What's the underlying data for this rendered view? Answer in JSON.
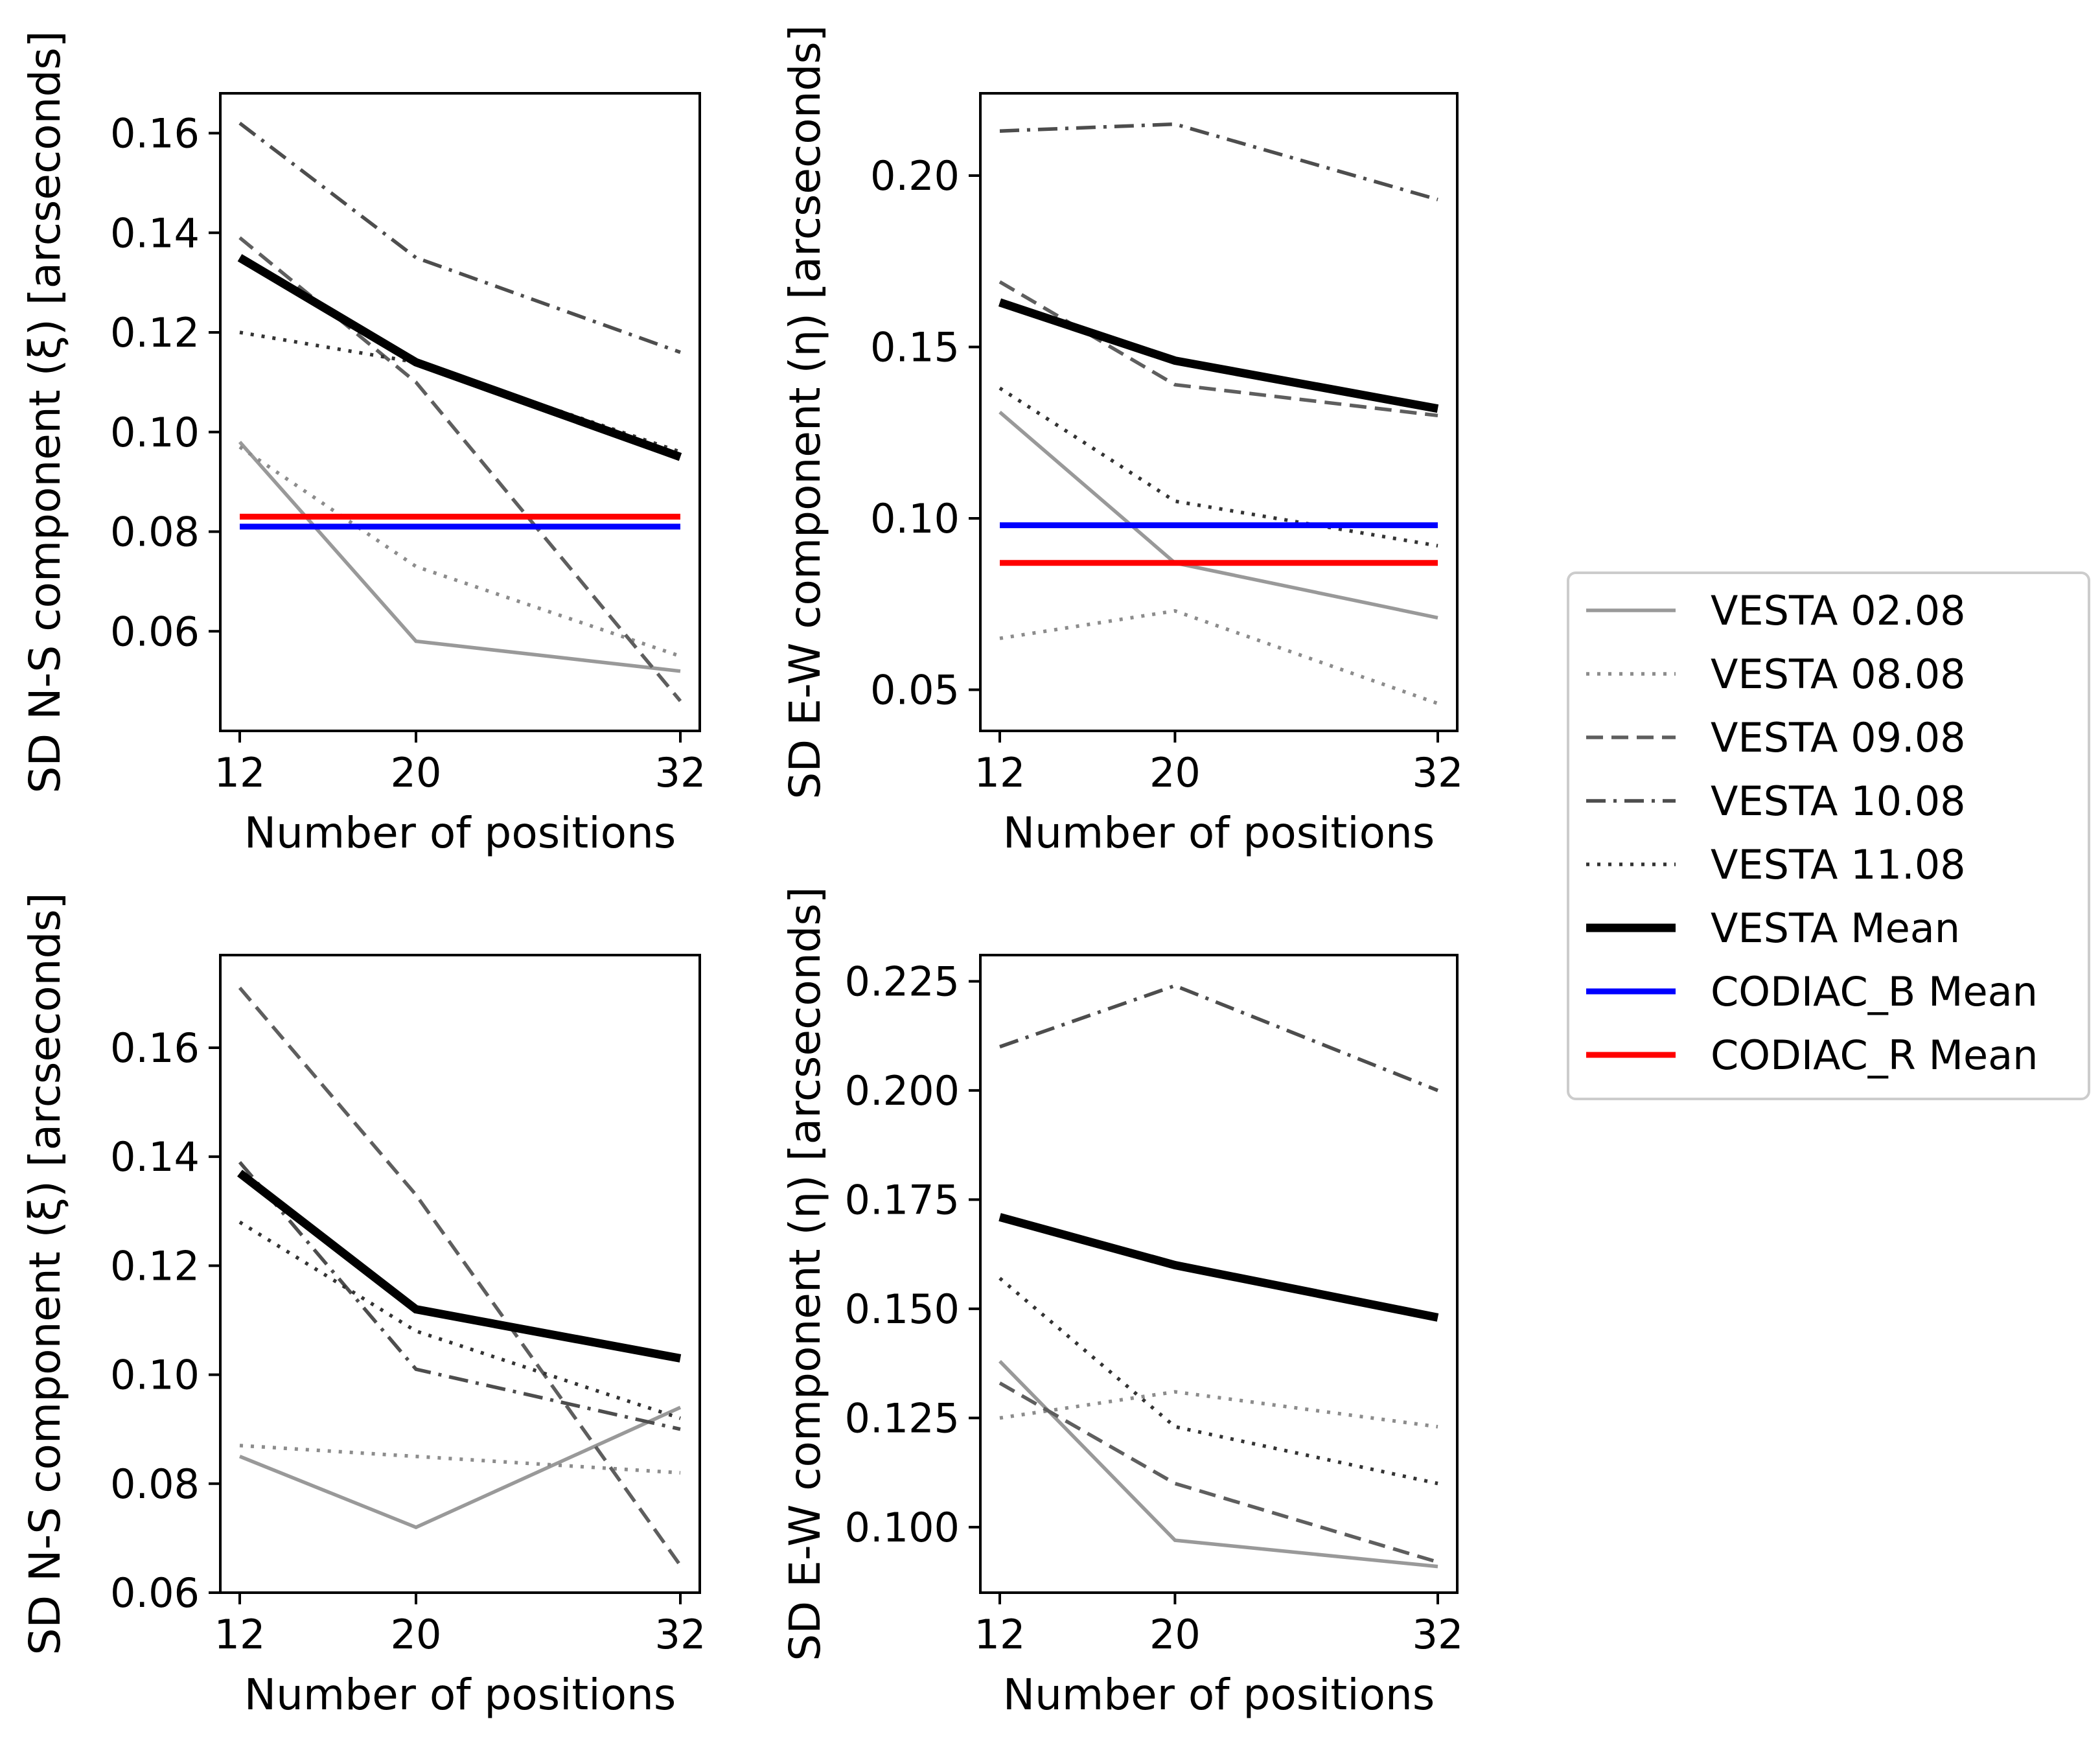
{
  "chart_data": [
    {
      "type": "line",
      "id": "top-left",
      "title": "",
      "xlabel": "Number of positions",
      "ylabel": "SD N-S component (ξ) [arcseconds]",
      "x": [
        12,
        20,
        32
      ],
      "xticks": [
        "12",
        "20",
        "32"
      ],
      "ylim": [
        0.04,
        0.168
      ],
      "yticks": [
        0.06,
        0.08,
        0.1,
        0.12,
        0.14,
        0.16
      ],
      "ytick_labels": [
        "0.06",
        "0.08",
        "0.10",
        "0.12",
        "0.14",
        "0.16"
      ],
      "grid": false,
      "series": [
        {
          "name": "VESTA 02.08",
          "style": "solid-gray",
          "values": [
            0.098,
            0.058,
            0.052
          ]
        },
        {
          "name": "VESTA 08.08",
          "style": "dotted-gray",
          "values": [
            0.097,
            0.073,
            0.055
          ]
        },
        {
          "name": "VESTA 09.08",
          "style": "dashed",
          "values": [
            0.139,
            0.11,
            0.046
          ]
        },
        {
          "name": "VESTA 10.08",
          "style": "dashdot",
          "values": [
            0.162,
            0.135,
            0.116
          ]
        },
        {
          "name": "VESTA 11.08",
          "style": "dotted-dark",
          "values": [
            0.12,
            0.114,
            0.096
          ]
        },
        {
          "name": "VESTA Mean",
          "style": "thick-black",
          "values": [
            0.135,
            0.114,
            0.095
          ]
        },
        {
          "name": "CODIAC_B Mean",
          "style": "blue",
          "values": [
            0.081,
            0.081,
            0.081
          ]
        },
        {
          "name": "CODIAC_R Mean",
          "style": "red",
          "values": [
            0.083,
            0.083,
            0.083
          ]
        }
      ]
    },
    {
      "type": "line",
      "id": "top-right",
      "title": "",
      "xlabel": "Number of positions",
      "ylabel": "SD E-W component (η) [arcseconds]",
      "x": [
        12,
        20,
        32
      ],
      "xticks": [
        "12",
        "20",
        "32"
      ],
      "ylim": [
        0.038,
        0.224
      ],
      "yticks": [
        0.05,
        0.1,
        0.15,
        0.2
      ],
      "ytick_labels": [
        "0.05",
        "0.10",
        "0.15",
        "0.20"
      ],
      "grid": false,
      "series": [
        {
          "name": "VESTA 02.08",
          "style": "solid-gray",
          "values": [
            0.131,
            0.087,
            0.071
          ]
        },
        {
          "name": "VESTA 08.08",
          "style": "dotted-gray",
          "values": [
            0.065,
            0.073,
            0.046
          ]
        },
        {
          "name": "VESTA 09.08",
          "style": "dashed",
          "values": [
            0.169,
            0.139,
            0.13
          ]
        },
        {
          "name": "VESTA 10.08",
          "style": "dashdot",
          "values": [
            0.213,
            0.215,
            0.193
          ]
        },
        {
          "name": "VESTA 11.08",
          "style": "dotted-dark",
          "values": [
            0.138,
            0.105,
            0.092
          ]
        },
        {
          "name": "VESTA Mean",
          "style": "thick-black",
          "values": [
            0.163,
            0.146,
            0.132
          ]
        },
        {
          "name": "CODIAC_B Mean",
          "style": "blue",
          "values": [
            0.098,
            0.098,
            0.098
          ]
        },
        {
          "name": "CODIAC_R Mean",
          "style": "red",
          "values": [
            0.087,
            0.087,
            0.087
          ]
        }
      ]
    },
    {
      "type": "line",
      "id": "bottom-left",
      "title": "",
      "xlabel": "Number of positions",
      "ylabel": "SD N-S component (ξ) [arcseconds]",
      "x": [
        12,
        20,
        32
      ],
      "xticks": [
        "12",
        "20",
        "32"
      ],
      "ylim": [
        0.06,
        0.177
      ],
      "yticks": [
        0.06,
        0.08,
        0.1,
        0.12,
        0.14,
        0.16
      ],
      "ytick_labels": [
        "0.06",
        "0.08",
        "0.10",
        "0.12",
        "0.14",
        "0.16"
      ],
      "grid": false,
      "series": [
        {
          "name": "VESTA 02.08",
          "style": "solid-gray",
          "values": [
            0.085,
            0.072,
            0.094
          ]
        },
        {
          "name": "VESTA 08.08",
          "style": "dotted-gray",
          "values": [
            0.087,
            0.085,
            0.082
          ]
        },
        {
          "name": "VESTA 09.08",
          "style": "dashed",
          "values": [
            0.171,
            0.133,
            0.065
          ]
        },
        {
          "name": "VESTA 10.08",
          "style": "dashdot",
          "values": [
            0.139,
            0.101,
            0.09
          ]
        },
        {
          "name": "VESTA 11.08",
          "style": "dotted-dark",
          "values": [
            0.128,
            0.108,
            0.092
          ]
        },
        {
          "name": "VESTA Mean",
          "style": "thick-black",
          "values": [
            0.137,
            0.112,
            0.103
          ]
        }
      ]
    },
    {
      "type": "line",
      "id": "bottom-right",
      "title": "",
      "xlabel": "Number of positions",
      "ylabel": "SD E-W component (η) [arcseconds]",
      "x": [
        12,
        20,
        32
      ],
      "xticks": [
        "12",
        "20",
        "32"
      ],
      "ylim": [
        0.085,
        0.231
      ],
      "yticks": [
        0.1,
        0.125,
        0.15,
        0.175,
        0.2,
        0.225
      ],
      "ytick_labels": [
        "0.100",
        "0.125",
        "0.150",
        "0.175",
        "0.200",
        "0.225"
      ],
      "grid": false,
      "series": [
        {
          "name": "VESTA 02.08",
          "style": "solid-gray",
          "values": [
            0.138,
            0.097,
            0.091
          ]
        },
        {
          "name": "VESTA 08.08",
          "style": "dotted-gray",
          "values": [
            0.125,
            0.131,
            0.123
          ]
        },
        {
          "name": "VESTA 09.08",
          "style": "dashed",
          "values": [
            0.133,
            0.11,
            0.092
          ]
        },
        {
          "name": "VESTA 10.08",
          "style": "dashdot",
          "values": [
            0.21,
            0.224,
            0.2
          ]
        },
        {
          "name": "VESTA 11.08",
          "style": "dotted-dark",
          "values": [
            0.157,
            0.123,
            0.11
          ]
        },
        {
          "name": "VESTA Mean",
          "style": "thick-black",
          "values": [
            0.171,
            0.16,
            0.148
          ]
        }
      ]
    }
  ],
  "legend": {
    "placement": "right",
    "entries": [
      {
        "label": "VESTA 02.08",
        "style": "solid-gray"
      },
      {
        "label": "VESTA 08.08",
        "style": "dotted-gray"
      },
      {
        "label": "VESTA 09.08",
        "style": "dashed"
      },
      {
        "label": "VESTA 10.08",
        "style": "dashdot"
      },
      {
        "label": "VESTA 11.08",
        "style": "dotted-dark"
      },
      {
        "label": "VESTA Mean",
        "style": "thick-black"
      },
      {
        "label": "CODIAC_B Mean",
        "style": "blue"
      },
      {
        "label": "CODIAC_R Mean",
        "style": "red"
      }
    ]
  },
  "colors": {
    "solid-gray": "#999999",
    "dotted-gray": "#8c8c8c",
    "dashed": "#5e5e5e",
    "dashdot": "#4d4d4d",
    "dotted-dark": "#333333",
    "thick-black": "#000000",
    "blue": "#0000ff",
    "red": "#ff0000"
  }
}
